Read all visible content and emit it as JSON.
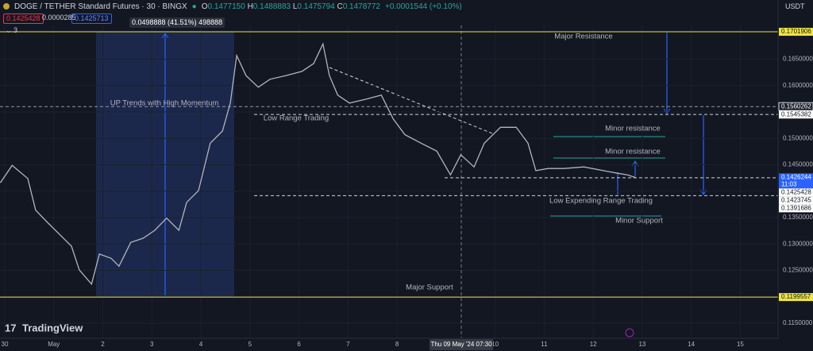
{
  "header": {
    "symbol": "DOGE / TETHER Standard Futures · 30 · BINGX",
    "ohlc": [
      {
        "key": "O",
        "value": "0.1477150"
      },
      {
        "key": "H",
        "value": "0.1488883"
      },
      {
        "key": "L",
        "value": "0.1475794"
      },
      {
        "key": "C",
        "value": "0.1478772"
      }
    ],
    "change": "+0.0001544 (+0.10%)",
    "bid": "0.1425428",
    "spread": "0.0000285",
    "ask": "0.1425713",
    "indicator_count": "3",
    "currency": "USDT"
  },
  "measure_label": "0.0498888 (41.51%) 498888",
  "logo": "TradingView",
  "chart_data": {
    "type": "line",
    "color": "#b2b5be",
    "x": [
      -0.09,
      0.15,
      0.47,
      0.63,
      0.87,
      1.12,
      1.36,
      1.52,
      1.77,
      1.93,
      2.17,
      2.33,
      2.57,
      2.82,
      3.06,
      3.3,
      3.55,
      3.71,
      3.95,
      4.19,
      4.44,
      4.6,
      4.73,
      4.92,
      5.17,
      5.41,
      5.73,
      6.06,
      6.3,
      6.49,
      6.62,
      6.79,
      7.03,
      7.35,
      7.68,
      7.92,
      8.16,
      8.49,
      8.81,
      9.09,
      9.3,
      9.57,
      9.78,
      10.11,
      10.43,
      10.67,
      10.83,
      11.08,
      11.4,
      11.81,
      12.21,
      12.5,
      12.7,
      12.86
    ],
    "values": [
      0.1416,
      0.1449,
      0.1424,
      0.1364,
      0.1341,
      0.1318,
      0.1296,
      0.1251,
      0.1224,
      0.1281,
      0.1273,
      0.1258,
      0.1303,
      0.1311,
      0.1326,
      0.1349,
      0.1326,
      0.1379,
      0.1401,
      0.1491,
      0.1514,
      0.1567,
      0.1657,
      0.1619,
      0.1597,
      0.1612,
      0.1619,
      0.1627,
      0.1642,
      0.1679,
      0.1619,
      0.1582,
      0.1567,
      0.1574,
      0.1582,
      0.1537,
      0.1507,
      0.1491,
      0.1476,
      0.1431,
      0.1469,
      0.1446,
      0.1491,
      0.1521,
      0.1521,
      0.1491,
      0.1439,
      0.1443,
      0.1443,
      0.1446,
      0.1439,
      0.1434,
      0.1431,
      0.1426
    ],
    "xlim": [
      -0.097,
      15.77
    ],
    "xticks": [
      {
        "value": 0,
        "label": "30"
      },
      {
        "value": 1,
        "label": "May"
      },
      2,
      3,
      4,
      5,
      6,
      7,
      8,
      10,
      11,
      12,
      13,
      14,
      15
    ],
    "crosshair": {
      "value": 9.31,
      "label": "Thu 09 May '24   07:30"
    },
    "ylim": [
      0.1123,
      0.1714
    ],
    "yticks": [
      {
        "value": 0.165,
        "label": "0.1650000"
      },
      {
        "value": 0.16,
        "label": "0.1600000"
      },
      {
        "value": 0.155,
        "label": "0.1550000"
      },
      {
        "value": 0.15,
        "label": "0.1500000"
      },
      {
        "value": 0.145,
        "label": "0.1450000"
      },
      {
        "value": 0.14,
        "label": "0.1400000"
      },
      {
        "value": 0.135,
        "label": "0.1350000"
      },
      {
        "value": 0.13,
        "label": "0.1300000"
      },
      {
        "value": 0.125,
        "label": "0.1250000"
      },
      {
        "value": 0.12,
        "label": "0.1200000"
      },
      {
        "value": 0.115,
        "label": "0.1150000"
      }
    ],
    "levels": [
      {
        "value": 0.1701906,
        "label": "0.1701906",
        "color": "#f0e442"
      },
      {
        "value": 0.1560262,
        "label": "0.1560262",
        "color": "#1e222d"
      },
      {
        "value": 0.1545382,
        "label": "0.1545382",
        "color": "#ffffff"
      },
      {
        "value": 0.1426244,
        "label": "0.1426244",
        "color": "#2962ff",
        "sublabel": "11:03"
      },
      {
        "value": 0.1425428,
        "label": "0.1425428",
        "color": "#ffffff"
      },
      {
        "value": 0.1423745,
        "label": "0.1423745",
        "color": "#ffffff"
      },
      {
        "value": 0.1391686,
        "label": "0.1391686",
        "color": "#ffffff"
      },
      {
        "value": 0.1199557,
        "label": "0.1199557",
        "color": "#f0e442"
      }
    ],
    "annotations": [
      "Major Resistance",
      "UP Trends with High Momentum",
      "Low Range Trading",
      "Minor resistance",
      "Minor resistance",
      "Low Expending Range Trading",
      "Minor Support",
      "Major Support"
    ]
  }
}
